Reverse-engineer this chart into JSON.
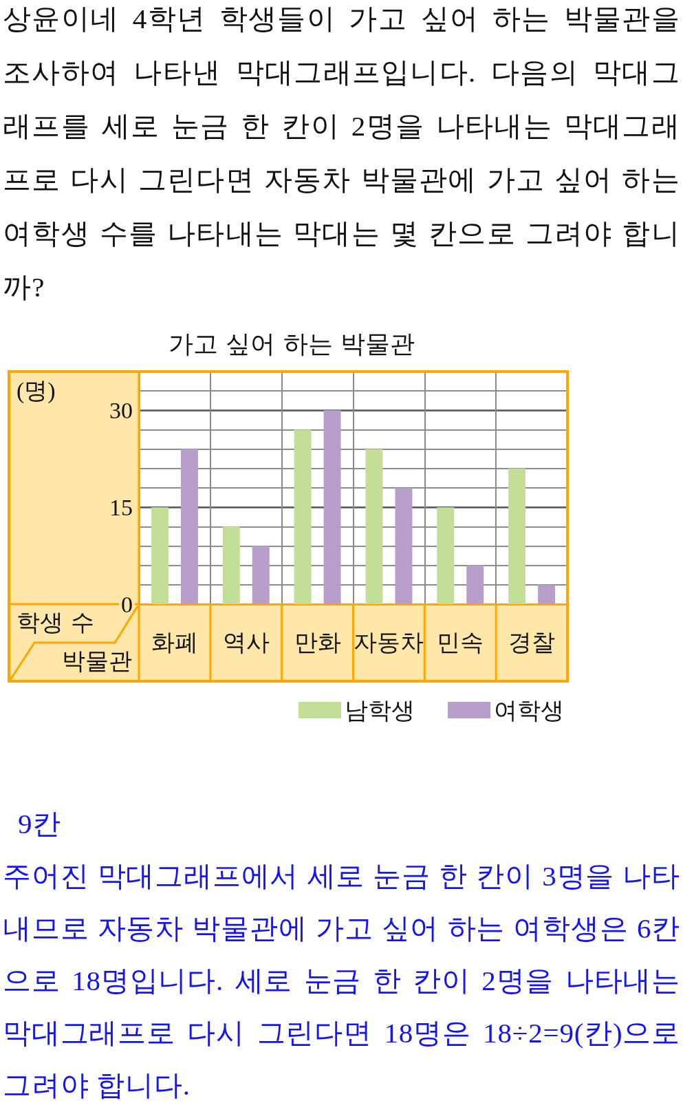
{
  "chart_data": {
    "type": "bar",
    "title": "가고 싶어 하는 박물관",
    "xlabel": "박물관",
    "ylabel": "학생 수",
    "categories": [
      "화폐",
      "역사",
      "만화",
      "자동차",
      "민속",
      "경찰"
    ],
    "series": [
      {
        "name": "남학생",
        "color": "#c3de97",
        "values": [
          15,
          12,
          27,
          24,
          15,
          21
        ]
      },
      {
        "name": "여학생",
        "color": "#b89fcb",
        "values": [
          24,
          9,
          30,
          18,
          6,
          3
        ]
      }
    ],
    "ylim": [
      0,
      36
    ],
    "yticks": [
      0,
      {
        "value": 3,
        "label": null
      },
      {
        "value": 6,
        "label": null
      },
      {
        "value": 9,
        "label": null
      },
      {
        "value": 12,
        "label": null
      },
      15,
      {
        "value": 18,
        "label": null
      },
      {
        "value": 21,
        "label": null
      },
      {
        "value": 24,
        "label": null
      },
      {
        "value": 27,
        "label": null
      },
      30,
      {
        "value": 33,
        "label": null
      }
    ],
    "grid": true,
    "legend": "bottom right",
    "annotations": [
      "상윤이네 4학년 학생들이 가고 싶어 하는 박물관을 조사하여 나타낸 막대그래프입니다. 다음의 막대그래프를 세로 눈금 한 칸이 2명을 나타내는 막대그래프로 다시 그린다면 자동차 박물관에 가고 싶어 하는 여학생 수를 나타내는 막대는 몇 칸으로 그려야 합니까?",
      "(명)",
      "9칸",
      "주어진 막대그래프에서 세로 눈금 한 칸이 3명을 나타내므로 자동차 박물관에 가고 싶어 하는 여학생은 6칸으로 18명입니다. 세로 눈금 한 칸이 2명을 나타내는 막대그래프로 다시 그린다면 18명은 18÷2=9(칸)으로 그려야 합니다."
    ]
  }
}
